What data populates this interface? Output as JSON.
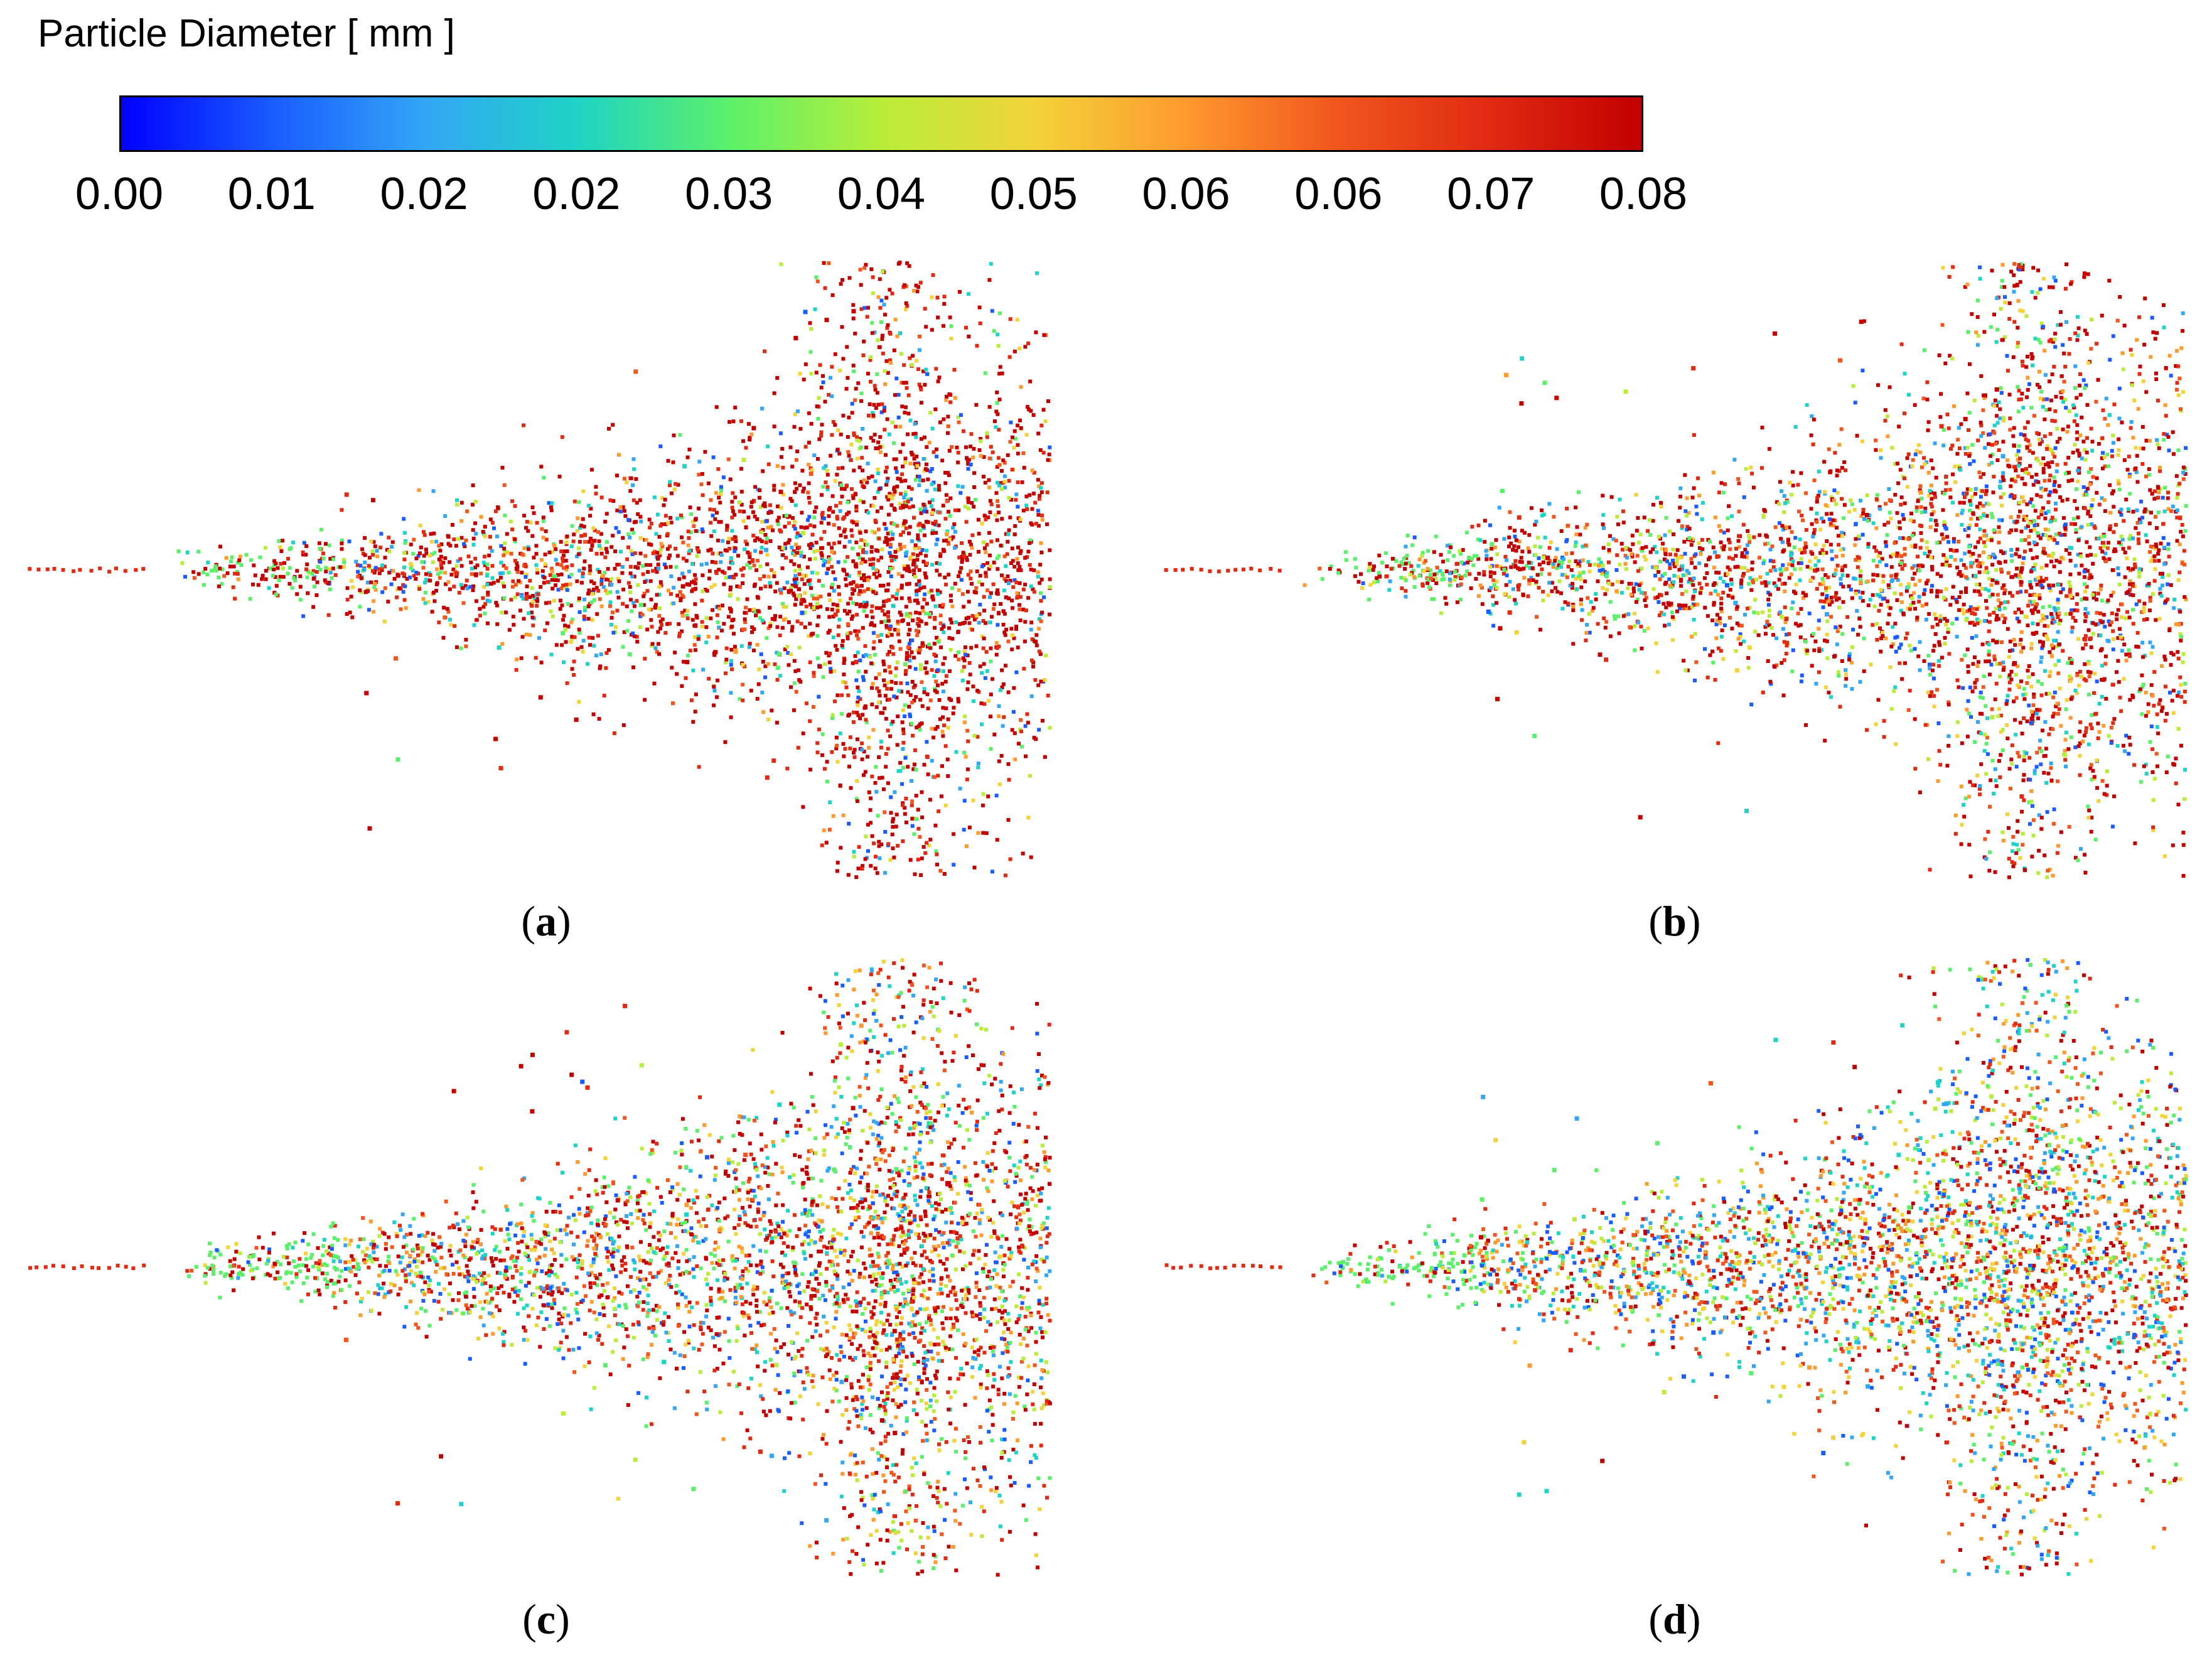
{
  "colorbar": {
    "title": "Particle Diameter [ mm ]",
    "ticks": [
      "0.00",
      "0.01",
      "0.02",
      "0.02",
      "0.03",
      "0.04",
      "0.05",
      "0.06",
      "0.06",
      "0.07",
      "0.08"
    ],
    "colors": [
      "#0000ff",
      "#1a5cff",
      "#33a6f5",
      "#1fd3c6",
      "#5cf06a",
      "#b8ed3a",
      "#f2d33a",
      "#ff9a2e",
      "#f0561e",
      "#e02a12",
      "#c20000"
    ]
  },
  "panels": [
    {
      "id": "a",
      "label": "a",
      "red_share": 0.65
    },
    {
      "id": "b",
      "label": "b",
      "red_share": 0.5
    },
    {
      "id": "c",
      "label": "c",
      "red_share": 0.35
    },
    {
      "id": "d",
      "label": "d",
      "red_share": 0.2
    }
  ]
}
